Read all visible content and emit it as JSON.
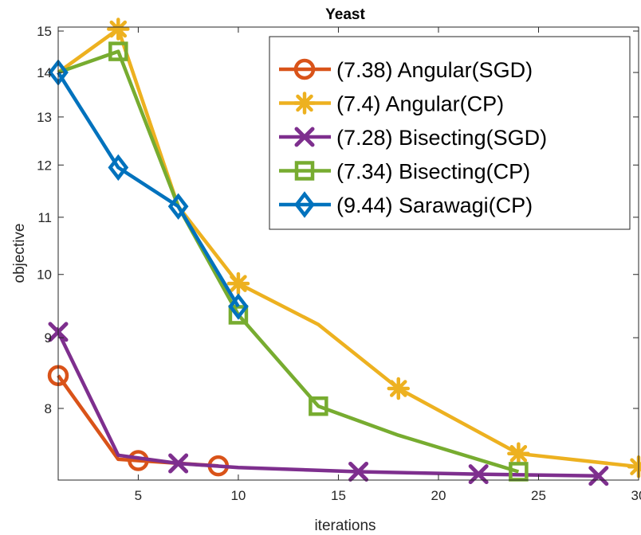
{
  "chart_data": {
    "type": "line",
    "title": "Yeast",
    "xlabel": "iterations",
    "ylabel": "objective",
    "y_scale": "log",
    "xlim": [
      1,
      30
    ],
    "ylim": [
      7.1,
      15.1
    ],
    "xticks": [
      5,
      10,
      15,
      20,
      25,
      30
    ],
    "yticks": [
      8,
      9,
      10,
      11,
      12,
      13,
      14,
      15
    ],
    "grid": false,
    "legend_position": "top-right",
    "series": [
      {
        "name": "(7.38) Angular(SGD)",
        "color": "#D95319",
        "marker": "circle",
        "x": [
          1,
          4,
          9
        ],
        "y": [
          8.45,
          7.35,
          7.27
        ],
        "marker_x": [
          1,
          5,
          9
        ]
      },
      {
        "name": "(7.4) Angular(CP)",
        "color": "#EDB120",
        "marker": "asterisk",
        "x": [
          1,
          4,
          7,
          10,
          14,
          18,
          24,
          30
        ],
        "y": [
          14.0,
          15.05,
          11.2,
          9.85,
          9.2,
          8.27,
          7.42,
          7.26
        ],
        "marker_x": [
          4,
          10,
          18,
          24,
          30
        ]
      },
      {
        "name": "(7.28) Bisecting(SGD)",
        "color": "#7E2F8E",
        "marker": "x",
        "x": [
          0.9,
          4,
          7,
          10,
          16,
          22,
          28
        ],
        "y": [
          9.15,
          7.4,
          7.3,
          7.25,
          7.2,
          7.17,
          7.15
        ],
        "marker_x": [
          1,
          7,
          16,
          22,
          28
        ]
      },
      {
        "name": "(7.34) Bisecting(CP)",
        "color": "#77AC30",
        "marker": "square",
        "x": [
          1,
          4,
          7,
          10,
          14,
          18,
          24
        ],
        "y": [
          14.0,
          14.5,
          11.2,
          9.35,
          8.03,
          7.65,
          7.2
        ],
        "marker_x": [
          4,
          10,
          14,
          24
        ]
      },
      {
        "name": "(9.44) Sarawagi(CP)",
        "color": "#0072BD",
        "marker": "diamond",
        "x": [
          1,
          4,
          7,
          10
        ],
        "y": [
          14.0,
          11.95,
          11.2,
          9.48
        ],
        "marker_x": [
          1,
          4,
          7,
          10
        ]
      }
    ]
  }
}
